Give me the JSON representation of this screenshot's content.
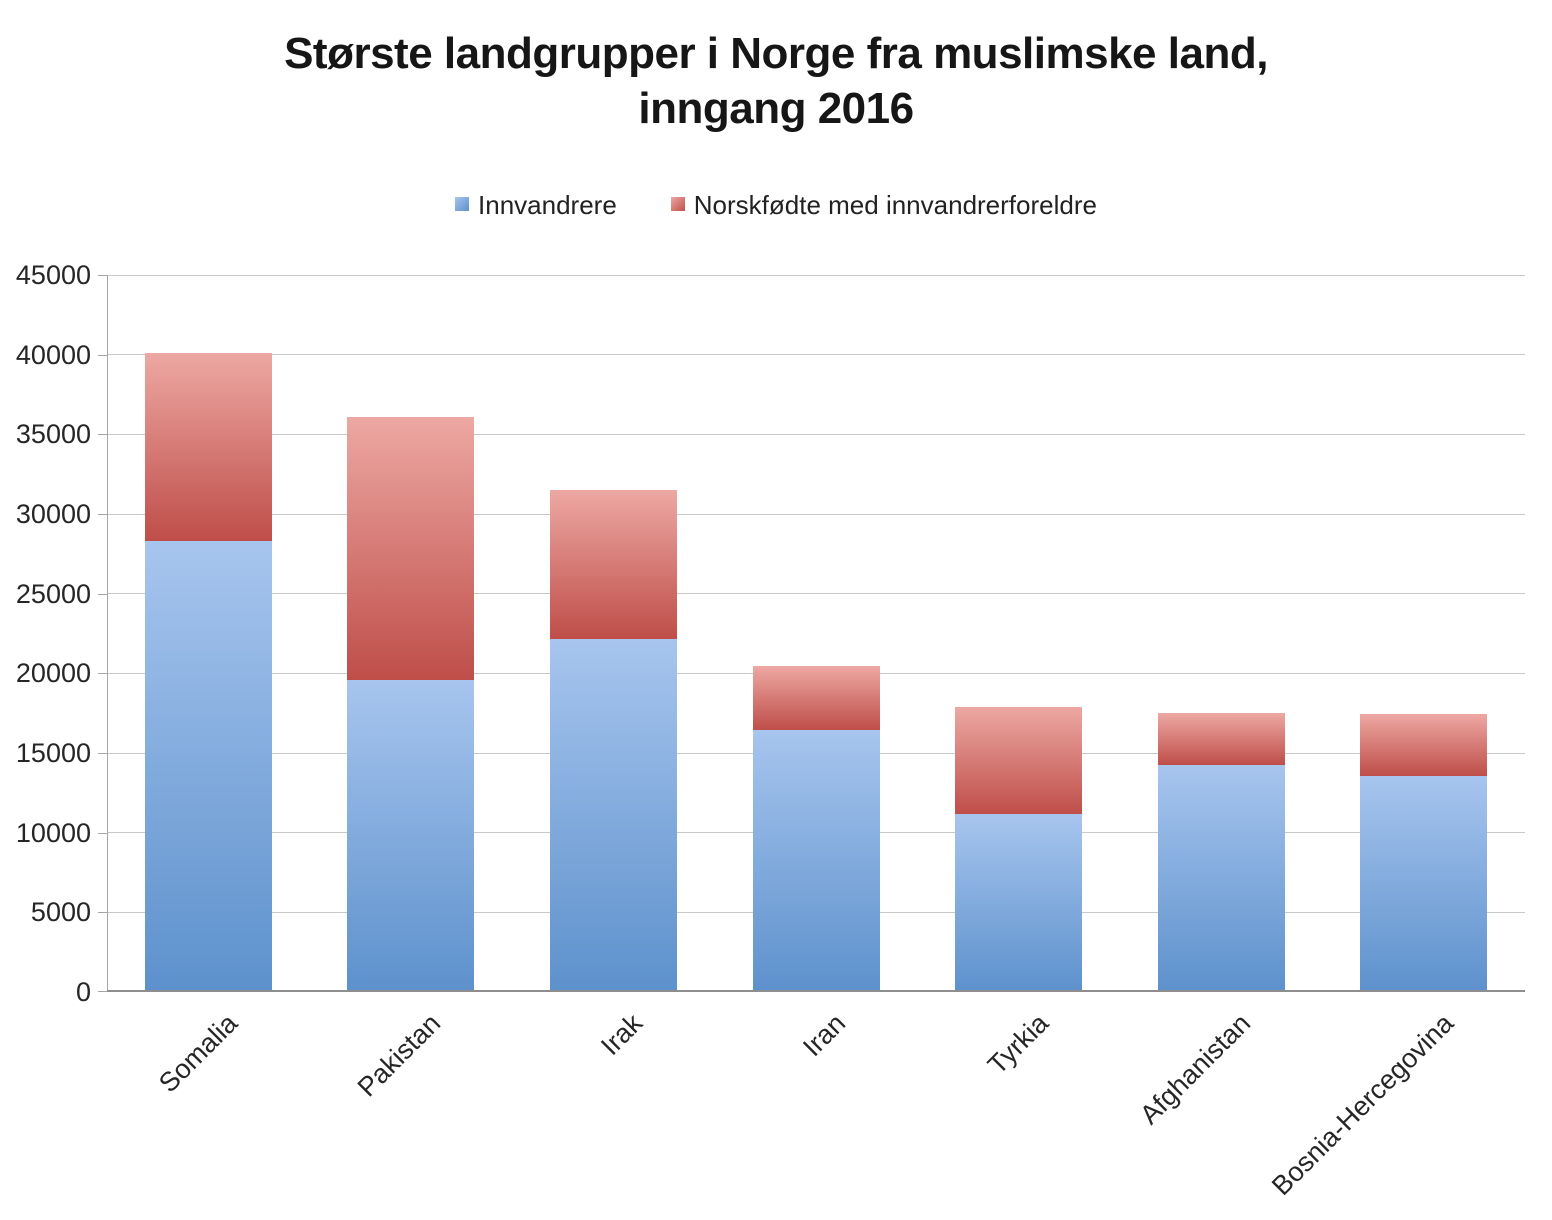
{
  "chart_data": {
    "type": "bar",
    "stacked": true,
    "title": "Største landgrupper i Norge fra muslimske land, inngang 2016",
    "title_lines": [
      "Største landgrupper i Norge fra muslimske land,",
      "inngang 2016"
    ],
    "categories": [
      "Somalia",
      "Pakistan",
      "Irak",
      "Iran",
      "Tyrkia",
      "Afghanistan",
      "Bosnia-Hercegovina"
    ],
    "series": [
      {
        "name": "Innvandrere",
        "color_top": "#A7C5EE",
        "color_bottom": "#5D91CC",
        "values": [
          28300,
          19600,
          22150,
          16450,
          11200,
          14250,
          13550
        ]
      },
      {
        "name": "Norskfødte med innvandrerforeldre",
        "color_top": "#EDA8A3",
        "color_bottom": "#BF4E49",
        "values": [
          11800,
          16500,
          9350,
          4000,
          6700,
          3250,
          3900
        ]
      }
    ],
    "ylim": [
      0,
      45000
    ],
    "yticks": [
      45000,
      40000,
      35000,
      30000,
      25000,
      20000,
      15000,
      10000,
      5000,
      0
    ],
    "grid": true,
    "legend_position": "top",
    "xlabel": "",
    "ylabel": ""
  },
  "colors": {
    "background": "#FFFFFF",
    "gridline": "#C9C9C9",
    "axis_left": "#A6A6A6",
    "axis_bottom": "#8E8E8E",
    "title_text": "#161616",
    "axis_text": "#262626"
  }
}
